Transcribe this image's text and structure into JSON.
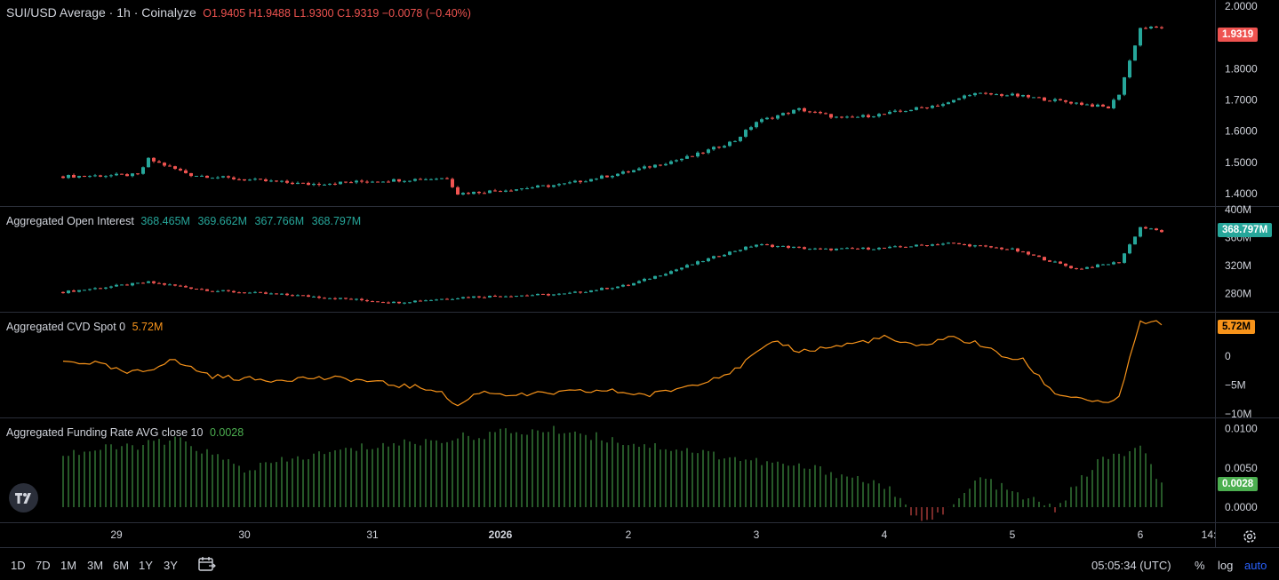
{
  "main": {
    "title": "SUI/USD Average · 1h · Coinalyze",
    "ohlc": {
      "o_label": "O",
      "o": "1.9405",
      "h_label": "H",
      "h": "1.9488",
      "l_label": "L",
      "l": "1.9300",
      "c_label": "C",
      "c": "1.9319",
      "change": "−0.0078 (−0.40%)"
    },
    "last_price_badge": "1.9319",
    "y_ticks": [
      "2.0000",
      "1.9000",
      "1.8000",
      "1.7000",
      "1.6000",
      "1.5000",
      "1.4000"
    ]
  },
  "open_interest": {
    "title": "Aggregated Open Interest",
    "values": [
      "368.465M",
      "369.662M",
      "367.766M",
      "368.797M"
    ],
    "badge": "368.797M",
    "y_ticks": [
      "400M",
      "360M",
      "320M",
      "280M"
    ]
  },
  "cvd": {
    "title": "Aggregated CVD Spot 0",
    "value": "5.72M",
    "badge": "5.72M",
    "y_ticks": [
      "0",
      "−5M",
      "−10M"
    ]
  },
  "funding": {
    "title": "Aggregated Funding Rate AVG close 10",
    "value": "0.0028",
    "badge": "0.0028",
    "y_ticks": [
      "0.0100",
      "0.0050",
      "0.0000"
    ]
  },
  "x_axis": {
    "ticks": [
      "29",
      "30",
      "31",
      "2026",
      "2",
      "3",
      "4",
      "5",
      "6",
      "14:"
    ]
  },
  "bottom_bar": {
    "timeframes": [
      "1D",
      "7D",
      "1M",
      "3M",
      "6M",
      "1Y",
      "3Y"
    ],
    "clock": "05:05:34 (UTC)",
    "percent": "%",
    "log": "log",
    "auto": "auto"
  },
  "icons": [
    "tradingview-logo-icon",
    "calendar-range-icon",
    "gear-icon"
  ],
  "colors": {
    "up": "#26a69a",
    "down": "#ef5350",
    "cvd_line": "#f7931a",
    "funding_pos": "#4caf50",
    "funding_neg": "#ef5350",
    "grid_separator": "#2a2e39",
    "text": "#d1d4dc",
    "auto_blue": "#2962ff"
  },
  "chart_data": [
    {
      "type": "line",
      "name": "price_close_approx",
      "x": [
        "Dec 28 14:00",
        "Dec 29 04:00",
        "Dec 29 06:00",
        "Dec 29 14:00",
        "Dec 30 00:00",
        "Dec 30 12:00",
        "Dec 31 00:00",
        "Dec 31 14:00",
        "Dec 31 16:00",
        "Jan 01 00:00",
        "Jan 01 12:00",
        "Jan 02 00:00",
        "Jan 02 12:00",
        "Jan 02 20:00",
        "Jan 03 00:00",
        "Jan 03 08:00",
        "Jan 03 16:00",
        "Jan 04 00:00",
        "Jan 04 12:00",
        "Jan 04 16:00",
        "Jan 05 00:00",
        "Jan 05 12:00",
        "Jan 05 18:00",
        "Jan 05 20:00",
        "Jan 06 00:00",
        "Jan 06 04:00"
      ],
      "y": [
        1.455,
        1.46,
        1.51,
        1.46,
        1.445,
        1.43,
        1.44,
        1.45,
        1.4,
        1.41,
        1.43,
        1.47,
        1.52,
        1.57,
        1.63,
        1.67,
        1.64,
        1.655,
        1.69,
        1.72,
        1.715,
        1.69,
        1.675,
        1.72,
        1.93,
        1.9319
      ],
      "ylim": [
        1.36,
        2.02
      ]
    },
    {
      "type": "line",
      "name": "open_interest_approx",
      "x": [
        "Dec 28 14:00",
        "Dec 29 06:00",
        "Dec 29 18:00",
        "Dec 30 12:00",
        "Dec 31 04:00",
        "Dec 31 18:00",
        "Jan 01 12:00",
        "Jan 02 00:00",
        "Jan 02 18:00",
        "Jan 03 00:00",
        "Jan 03 12:00",
        "Jan 04 00:00",
        "Jan 04 12:00",
        "Jan 05 00:00",
        "Jan 05 12:00",
        "Jan 05 20:00",
        "Jan 06 00:00",
        "Jan 06 04:00"
      ],
      "y": [
        282,
        296,
        284,
        276,
        267,
        275,
        279,
        292,
        337,
        350,
        343,
        345,
        352,
        343,
        315,
        325,
        375,
        368.797
      ],
      "ylim": [
        255,
        404
      ]
    },
    {
      "type": "line",
      "name": "Aggregated CVD Spot",
      "x": [
        "Dec 28 14:00",
        "Dec 28 20:00",
        "Dec 29 02:00",
        "Dec 29 06:00",
        "Dec 29 10:00",
        "Dec 29 18:00",
        "Dec 30 04:00",
        "Dec 30 12:00",
        "Dec 30 20:00",
        "Dec 31 04:00",
        "Dec 31 12:00",
        "Dec 31 16:00",
        "Dec 31 20:00",
        "Jan 01 04:00",
        "Jan 01 12:00",
        "Jan 01 20:00",
        "Jan 02 04:00",
        "Jan 02 12:00",
        "Jan 02 20:00",
        "Jan 03 00:00",
        "Jan 03 04:00",
        "Jan 03 08:00",
        "Jan 03 16:00",
        "Jan 04 00:00",
        "Jan 04 06:00",
        "Jan 04 12:00",
        "Jan 04 18:00",
        "Jan 04 22:00",
        "Jan 05 02:00",
        "Jan 05 08:00",
        "Jan 05 14:00",
        "Jan 05 18:00",
        "Jan 05 20:00",
        "Jan 06 00:00",
        "Jan 06 04:00"
      ],
      "y": [
        -1.0,
        -1.2,
        -3.0,
        -2.5,
        -0.6,
        -3.5,
        -4.2,
        -3.8,
        -4.0,
        -5.0,
        -5.8,
        -8.7,
        -6.2,
        -6.8,
        -6.3,
        -6.0,
        -6.8,
        -5.0,
        -2.5,
        0.5,
        2.5,
        0.8,
        1.8,
        3.2,
        1.5,
        3.3,
        2.0,
        0.0,
        -0.8,
        -6.5,
        -7.5,
        -8.5,
        -7.0,
        5.8,
        5.72
      ],
      "ylim": [
        -10.5,
        7.5
      ]
    },
    {
      "type": "bar",
      "name": "Aggregated Funding Rate AVG close 10",
      "x": [
        "Dec 28 14:00",
        "Dec 29 12:00",
        "Dec 30 00:00",
        "Dec 30 12:00",
        "Dec 31 00:00",
        "Dec 31 12:00",
        "Jan 01 00:00",
        "Jan 01 12:00",
        "Jan 02 00:00",
        "Jan 02 12:00",
        "Jan 03 00:00",
        "Jan 03 12:00",
        "Jan 04 00:00",
        "Jan 04 06:00",
        "Jan 04 12:00",
        "Jan 04 18:00",
        "Jan 05 00:00",
        "Jan 05 08:00",
        "Jan 05 16:00",
        "Jan 06 00:00",
        "Jan 06 04:00"
      ],
      "y": [
        0.0068,
        0.0085,
        0.0048,
        0.0065,
        0.0078,
        0.0085,
        0.0095,
        0.0098,
        0.0082,
        0.0072,
        0.0058,
        0.0048,
        0.0028,
        -0.0015,
        -0.0005,
        0.0038,
        0.0018,
        -0.0002,
        0.0058,
        0.0075,
        0.0028
      ],
      "ylim": [
        -0.0018,
        0.0113
      ]
    }
  ]
}
